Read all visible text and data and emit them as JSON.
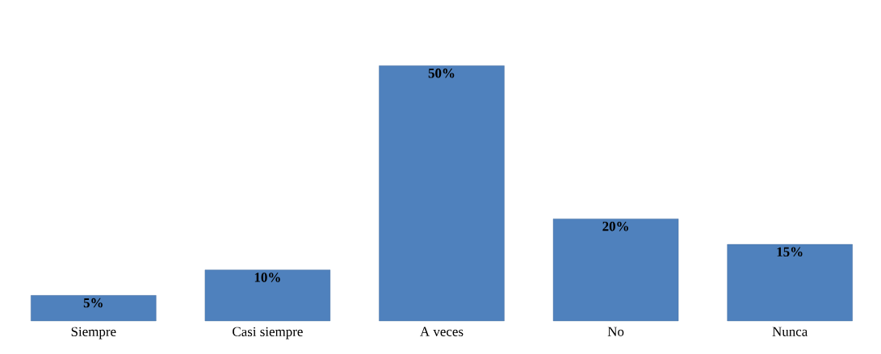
{
  "chart_data": {
    "type": "bar",
    "categories": [
      "Siempre",
      "Casi siempre",
      "A veces",
      "No",
      "Nunca"
    ],
    "values": [
      5,
      10,
      50,
      20,
      15
    ],
    "value_labels": [
      "5%",
      "10%",
      "50%",
      "20%",
      "15%"
    ],
    "color": "#4f81bd"
  }
}
